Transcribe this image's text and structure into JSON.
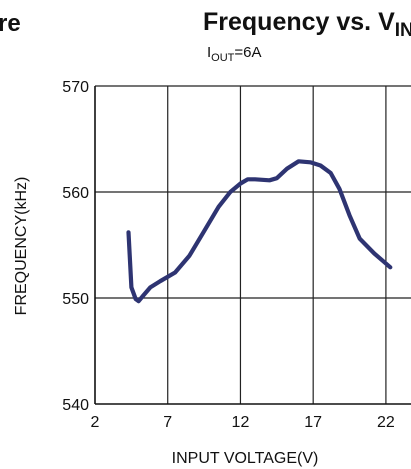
{
  "left_fragment": "re",
  "title": {
    "main": "Frequency vs. V",
    "sub": "IN"
  },
  "subtitle": {
    "main": "I",
    "sub": "OUT",
    "rest": "=6A"
  },
  "chart_data": {
    "type": "line",
    "title": "Frequency vs. VIN",
    "subtitle": "IOUT=6A",
    "xlabel": "INPUT VOLTAGE(V)",
    "ylabel": "FREQUENCY(kHz)",
    "xlim": [
      2,
      24
    ],
    "ylim": [
      540,
      570
    ],
    "xticks": [
      2,
      7,
      12,
      17,
      22
    ],
    "yticks": [
      540,
      550,
      560,
      570
    ],
    "grid": true,
    "line_color": "#2e3472",
    "series": [
      {
        "x": [
          4.3,
          4.5,
          4.8,
          5.0,
          5.3,
          5.8,
          6.5,
          7.5,
          8.5,
          9.5,
          10.5,
          11.3,
          12.0,
          12.5,
          13.0,
          14.0,
          14.5,
          15.2,
          16.0,
          16.8,
          17.5,
          18.2,
          18.8,
          19.5,
          20.2,
          21.2,
          22.3
        ],
        "y": [
          556.2,
          551.0,
          549.9,
          549.7,
          550.2,
          551.0,
          551.6,
          552.4,
          554.0,
          556.3,
          558.6,
          560.0,
          560.8,
          561.2,
          561.2,
          561.1,
          561.3,
          562.2,
          562.9,
          562.8,
          562.5,
          561.8,
          560.3,
          557.8,
          555.6,
          554.2,
          552.9
        ]
      }
    ]
  }
}
